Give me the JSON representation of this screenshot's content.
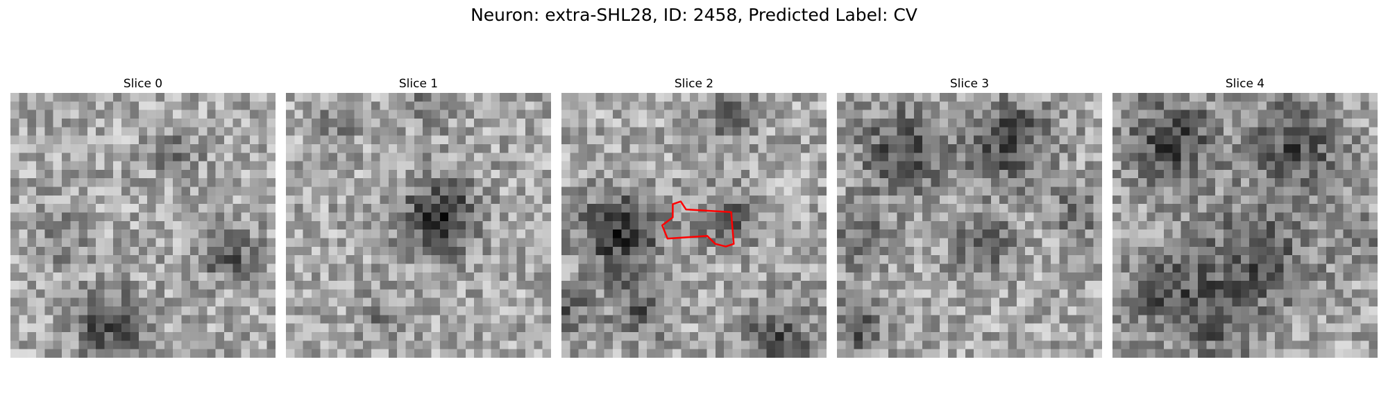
{
  "figure": {
    "title": "Neuron: extra-SHL28, ID: 2458, Predicted Label: CV"
  },
  "slices": [
    {
      "title": "Slice 0",
      "dark_blobs": [
        [
          0.38,
          0.88,
          0.09,
          0.7
        ],
        [
          0.82,
          0.6,
          0.07,
          0.6
        ],
        [
          0.63,
          0.24,
          0.06,
          0.35
        ],
        [
          0.18,
          0.55,
          0.08,
          0.25
        ]
      ]
    },
    {
      "title": "Slice 1",
      "dark_blobs": [
        [
          0.58,
          0.47,
          0.1,
          0.85
        ],
        [
          0.55,
          0.05,
          0.06,
          0.4
        ],
        [
          0.2,
          0.12,
          0.06,
          0.25
        ],
        [
          0.35,
          0.85,
          0.06,
          0.3
        ]
      ]
    },
    {
      "title": "Slice 2",
      "dark_blobs": [
        [
          0.22,
          0.53,
          0.11,
          0.8
        ],
        [
          0.62,
          0.47,
          0.08,
          0.5
        ],
        [
          0.63,
          0.08,
          0.07,
          0.55
        ],
        [
          0.3,
          0.82,
          0.08,
          0.5
        ],
        [
          0.82,
          0.93,
          0.09,
          0.6
        ],
        [
          0.02,
          0.82,
          0.06,
          0.5
        ]
      ]
    },
    {
      "title": "Slice 3",
      "dark_blobs": [
        [
          0.25,
          0.22,
          0.12,
          0.6
        ],
        [
          0.65,
          0.18,
          0.12,
          0.65
        ],
        [
          0.55,
          0.58,
          0.08,
          0.55
        ],
        [
          0.1,
          0.55,
          0.08,
          0.4
        ],
        [
          0.08,
          0.88,
          0.07,
          0.6
        ],
        [
          0.9,
          0.45,
          0.07,
          0.4
        ]
      ]
    },
    {
      "title": "Slice 4",
      "dark_blobs": [
        [
          0.22,
          0.18,
          0.12,
          0.75
        ],
        [
          0.7,
          0.18,
          0.12,
          0.65
        ],
        [
          0.55,
          0.62,
          0.15,
          0.55
        ],
        [
          0.2,
          0.75,
          0.12,
          0.5
        ],
        [
          0.4,
          0.88,
          0.1,
          0.45
        ],
        [
          0.92,
          0.55,
          0.08,
          0.3
        ]
      ]
    }
  ],
  "roi": {
    "slice_index": 2,
    "color": "#ff0000",
    "contour": [
      [
        0.42,
        0.42
      ],
      [
        0.45,
        0.41
      ],
      [
        0.47,
        0.44
      ],
      [
        0.64,
        0.45
      ],
      [
        0.65,
        0.57
      ],
      [
        0.62,
        0.58
      ],
      [
        0.58,
        0.57
      ],
      [
        0.55,
        0.54
      ],
      [
        0.4,
        0.55
      ],
      [
        0.38,
        0.5
      ],
      [
        0.42,
        0.47
      ]
    ]
  },
  "grid_size": 31
}
